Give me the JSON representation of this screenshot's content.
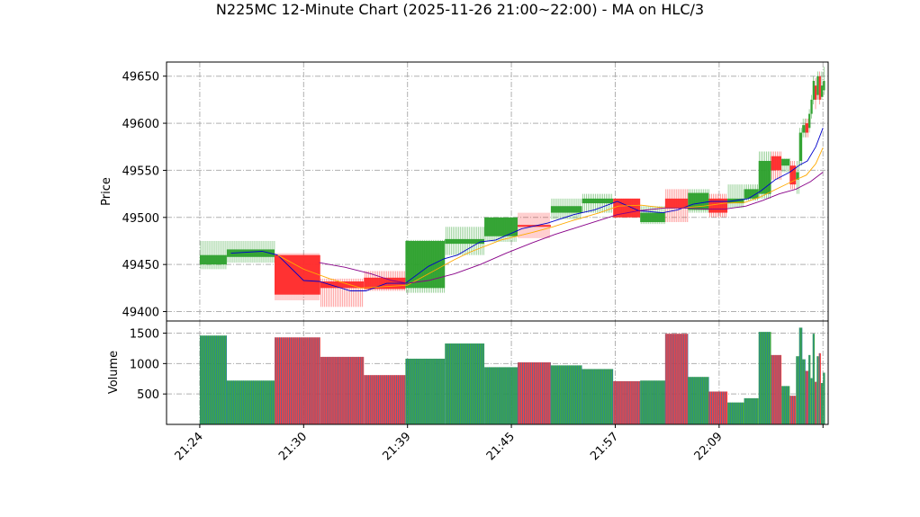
{
  "chart_data": {
    "type": "candlestick",
    "title": "N225MC 12-Minute Chart (2025-11-26 21:00~22:00) - MA on HLC/3",
    "colors": {
      "up": "#2ca02c",
      "down": "#ff2a2a",
      "ma_fast": "#0000cc",
      "ma_mid": "#ffaa00",
      "ma_slow": "#880088",
      "volume": "#1f77b4",
      "grid": "#b0b0b0"
    },
    "price_panel": {
      "ylabel": "Price",
      "ylim": [
        49390,
        49665
      ],
      "yticks": [
        49400,
        49450,
        49500,
        49550,
        49600,
        49650
      ],
      "grid": true
    },
    "volume_panel": {
      "ylabel": "Volume",
      "ylim": [
        0,
        1700
      ],
      "yticks": [
        500,
        1000,
        1500
      ],
      "grid": true
    },
    "xlim": [
      -3.2,
      60.5
    ],
    "xticks": [
      {
        "x": 0,
        "label": "21:24"
      },
      {
        "x": 10,
        "label": "21:30"
      },
      {
        "x": 20,
        "label": "21:39"
      },
      {
        "x": 30,
        "label": "21:45"
      },
      {
        "x": 40,
        "label": "21:57"
      },
      {
        "x": 50,
        "label": "22:09"
      },
      {
        "x": 60,
        "label": ""
      }
    ],
    "bars": [
      {
        "start": 0,
        "end": 2.6,
        "open": 49450,
        "high": 49475,
        "low": 49445,
        "close": 49460,
        "volume": 1460
      },
      {
        "start": 2.6,
        "end": 7.2,
        "open": 49458,
        "high": 49475,
        "low": 49452,
        "close": 49466,
        "volume": 720
      },
      {
        "start": 7.2,
        "end": 11.6,
        "open": 49460,
        "high": 49462,
        "low": 49412,
        "close": 49418,
        "volume": 1430
      },
      {
        "start": 11.6,
        "end": 15.8,
        "open": 49432,
        "high": 49435,
        "low": 49405,
        "close": 49425,
        "volume": 1110
      },
      {
        "start": 15.8,
        "end": 19.8,
        "open": 49436,
        "high": 49443,
        "low": 49422,
        "close": 49424,
        "volume": 810
      },
      {
        "start": 19.8,
        "end": 23.6,
        "open": 49425,
        "high": 49476,
        "low": 49420,
        "close": 49475,
        "volume": 1080
      },
      {
        "start": 23.6,
        "end": 27.4,
        "open": 49472,
        "high": 49490,
        "low": 49460,
        "close": 49477,
        "volume": 1330
      },
      {
        "start": 27.4,
        "end": 30.6,
        "open": 49480,
        "high": 49500,
        "low": 49474,
        "close": 49500,
        "volume": 940
      },
      {
        "start": 30.6,
        "end": 33.8,
        "open": 49492,
        "high": 49505,
        "low": 49478,
        "close": 49490,
        "volume": 1020
      },
      {
        "start": 33.8,
        "end": 36.8,
        "open": 49505,
        "high": 49520,
        "low": 49498,
        "close": 49512,
        "volume": 970
      },
      {
        "start": 36.8,
        "end": 39.8,
        "open": 49515,
        "high": 49525,
        "low": 49505,
        "close": 49520,
        "volume": 910
      },
      {
        "start": 39.8,
        "end": 42.4,
        "open": 49520,
        "high": 49520,
        "low": 49500,
        "close": 49500,
        "volume": 710
      },
      {
        "start": 42.4,
        "end": 44.8,
        "open": 49495,
        "high": 49512,
        "low": 49493,
        "close": 49505,
        "volume": 720
      },
      {
        "start": 44.8,
        "end": 47.0,
        "open": 49520,
        "high": 49530,
        "low": 49495,
        "close": 49510,
        "volume": 1490
      },
      {
        "start": 47.0,
        "end": 49.0,
        "open": 49508,
        "high": 49530,
        "low": 49505,
        "close": 49526,
        "volume": 780
      },
      {
        "start": 49.0,
        "end": 50.8,
        "open": 49520,
        "high": 49525,
        "low": 49500,
        "close": 49505,
        "volume": 540
      },
      {
        "start": 50.8,
        "end": 52.4,
        "open": 49515,
        "high": 49535,
        "low": 49510,
        "close": 49520,
        "volume": 360
      },
      {
        "start": 52.4,
        "end": 53.8,
        "open": 49520,
        "high": 49535,
        "low": 49518,
        "close": 49530,
        "volume": 430
      },
      {
        "start": 53.8,
        "end": 55.0,
        "open": 49525,
        "high": 49570,
        "low": 49520,
        "close": 49560,
        "volume": 1520
      },
      {
        "start": 55.0,
        "end": 56.0,
        "open": 49565,
        "high": 49570,
        "low": 49540,
        "close": 49550,
        "volume": 1140
      },
      {
        "start": 56.0,
        "end": 56.8,
        "open": 49555,
        "high": 49563,
        "low": 49548,
        "close": 49562,
        "volume": 630
      },
      {
        "start": 56.8,
        "end": 57.4,
        "open": 49555,
        "high": 49560,
        "low": 49530,
        "close": 49535,
        "volume": 470
      },
      {
        "start": 57.4,
        "end": 57.7,
        "open": 49540,
        "high": 49560,
        "low": 49525,
        "close": 49548,
        "volume": 1120
      },
      {
        "start": 57.7,
        "end": 58.0,
        "open": 49560,
        "high": 49595,
        "low": 49555,
        "close": 49590,
        "volume": 1590
      },
      {
        "start": 58.0,
        "end": 58.3,
        "open": 49590,
        "high": 49605,
        "low": 49585,
        "close": 49598,
        "volume": 1070
      },
      {
        "start": 58.3,
        "end": 58.6,
        "open": 49600,
        "high": 49605,
        "low": 49585,
        "close": 49590,
        "volume": 880
      },
      {
        "start": 58.6,
        "end": 58.8,
        "open": 49595,
        "high": 49615,
        "low": 49590,
        "close": 49610,
        "volume": 1140
      },
      {
        "start": 58.8,
        "end": 59.0,
        "open": 49610,
        "high": 49630,
        "low": 49605,
        "close": 49625,
        "volume": 760
      },
      {
        "start": 59.0,
        "end": 59.2,
        "open": 49625,
        "high": 49650,
        "low": 49620,
        "close": 49645,
        "volume": 1490
      },
      {
        "start": 59.2,
        "end": 59.4,
        "open": 49640,
        "high": 49648,
        "low": 49615,
        "close": 49625,
        "volume": 700
      },
      {
        "start": 59.4,
        "end": 59.6,
        "open": 49630,
        "high": 49655,
        "low": 49625,
        "close": 49650,
        "volume": 1120
      },
      {
        "start": 59.6,
        "end": 59.8,
        "open": 49650,
        "high": 49655,
        "low": 49620,
        "close": 49625,
        "volume": 1170
      },
      {
        "start": 59.8,
        "end": 60.0,
        "open": 49628,
        "high": 49655,
        "low": 49625,
        "close": 49640,
        "volume": 680
      },
      {
        "start": 60.0,
        "end": 60.2,
        "open": 49635,
        "high": 49660,
        "low": 49630,
        "close": 49645,
        "volume": 850
      }
    ],
    "ma_lines": [
      {
        "color": "#0000cc",
        "points": [
          [
            3,
            49462
          ],
          [
            6,
            49464
          ],
          [
            7.5,
            49460
          ],
          [
            10,
            49433
          ],
          [
            11.5,
            49432
          ],
          [
            14.5,
            49422
          ],
          [
            16,
            49422
          ],
          [
            18,
            49430
          ],
          [
            19.8,
            49430
          ],
          [
            22,
            49448
          ],
          [
            23.5,
            49456
          ],
          [
            24.8,
            49460
          ],
          [
            27,
            49474
          ],
          [
            28.5,
            49476
          ],
          [
            31,
            49488
          ],
          [
            33.5,
            49494
          ],
          [
            36,
            49503
          ],
          [
            38,
            49508
          ],
          [
            40.2,
            49517
          ],
          [
            42.3,
            49507
          ],
          [
            44.6,
            49505
          ],
          [
            46,
            49508
          ],
          [
            47.5,
            49514
          ],
          [
            49.2,
            49517
          ],
          [
            51,
            49517
          ],
          [
            52.8,
            49520
          ],
          [
            54,
            49528
          ],
          [
            55.4,
            49540
          ],
          [
            56.8,
            49548
          ],
          [
            57.8,
            49556
          ],
          [
            58.5,
            49560
          ],
          [
            59.3,
            49575
          ],
          [
            60,
            49595
          ]
        ]
      },
      {
        "color": "#ffaa00",
        "points": [
          [
            7.5,
            49460
          ],
          [
            10,
            49445
          ],
          [
            12.5,
            49435
          ],
          [
            15.5,
            49425
          ],
          [
            18.5,
            49427
          ],
          [
            20,
            49428
          ],
          [
            22,
            49440
          ],
          [
            24.5,
            49455
          ],
          [
            26,
            49463
          ],
          [
            29,
            49476
          ],
          [
            32,
            49484
          ],
          [
            34,
            49490
          ],
          [
            36,
            49497
          ],
          [
            38.5,
            49505
          ],
          [
            40.3,
            49512
          ],
          [
            42.5,
            49513
          ],
          [
            44.8,
            49510
          ],
          [
            46.5,
            49510
          ],
          [
            48.5,
            49512
          ],
          [
            50.5,
            49515
          ],
          [
            52.5,
            49516
          ],
          [
            54,
            49522
          ],
          [
            55.5,
            49530
          ],
          [
            57,
            49538
          ],
          [
            58.4,
            49545
          ],
          [
            59.3,
            49557
          ],
          [
            60,
            49574
          ]
        ]
      },
      {
        "color": "#880088",
        "points": [
          [
            11.5,
            49452
          ],
          [
            14,
            49447
          ],
          [
            16.5,
            49440
          ],
          [
            18.5,
            49433
          ],
          [
            20,
            49430
          ],
          [
            22,
            49433
          ],
          [
            24.5,
            49440
          ],
          [
            27,
            49450
          ],
          [
            29.5,
            49462
          ],
          [
            32,
            49473
          ],
          [
            34.2,
            49482
          ],
          [
            36.8,
            49491
          ],
          [
            38.5,
            49497
          ],
          [
            40.2,
            49503
          ],
          [
            42.2,
            49507
          ],
          [
            44.8,
            49510
          ],
          [
            46.5,
            49510
          ],
          [
            48.6,
            49509
          ],
          [
            50.6,
            49509
          ],
          [
            52.6,
            49512
          ],
          [
            54.2,
            49518
          ],
          [
            55.8,
            49525
          ],
          [
            57.4,
            49530
          ],
          [
            58.8,
            49538
          ],
          [
            60,
            49548
          ]
        ]
      }
    ]
  }
}
